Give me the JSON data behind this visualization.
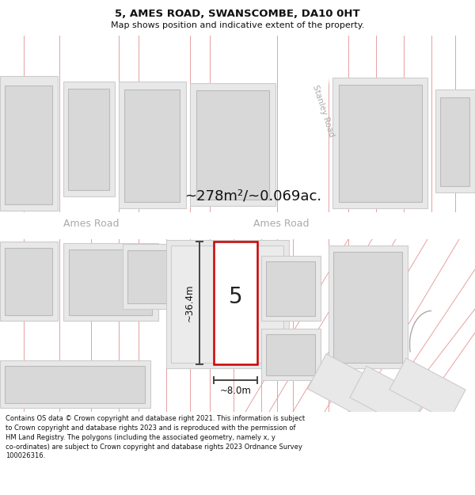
{
  "title": "5, AMES ROAD, SWANSCOMBE, DA10 0HT",
  "subtitle": "Map shows position and indicative extent of the property.",
  "area_text": "~278m²/~0.069ac.",
  "dimension_width": "~8.0m",
  "dimension_height": "~36.4m",
  "property_number": "5",
  "road_label_left": "Ames Road",
  "road_label_right": "Ames Road",
  "stanley_road_label": "Stanley Road",
  "footer_text": "Contains OS data © Crown copyright and database right 2021. This information is subject to Crown copyright and database rights 2023 and is reproduced with the permission of HM Land Registry. The polygons (including the associated geometry, namely x, y co-ordinates) are subject to Crown copyright and database rights 2023 Ordnance Survey 100026316.",
  "bg_color": "#ffffff",
  "map_bg": "#f5f5f5",
  "road_color": "#ffffff",
  "building_outer_fill": "#e8e8e8",
  "building_outer_edge": "#cccccc",
  "building_inner_fill": "#d8d8d8",
  "building_inner_edge": "#bbbbbb",
  "highlight_fill": "#ffffff",
  "highlight_stroke": "#cc0000",
  "pink_line_color": "#e8a0a0",
  "dim_color": "#444444",
  "road_text_color": "#aaaaaa",
  "title_fontsize": 9.5,
  "subtitle_fontsize": 8.0,
  "footer_fontsize": 6.0,
  "area_fontsize": 13,
  "dim_fontsize": 8.5,
  "road_fontsize": 9,
  "prop_num_fontsize": 20,
  "stanley_fontsize": 7.5
}
